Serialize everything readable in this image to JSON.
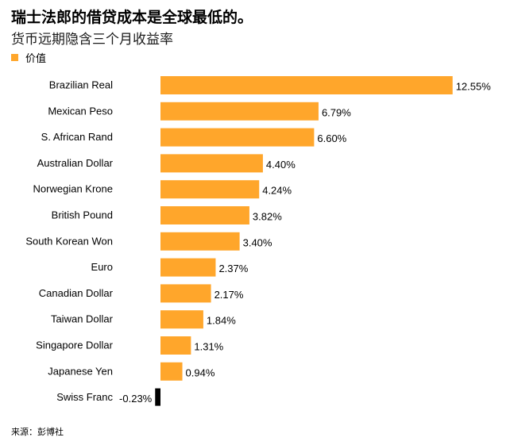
{
  "header": {
    "title": "瑞士法郎的借贷成本是全球最低的。",
    "subtitle": "货币远期隐含三个月收益率"
  },
  "legend": {
    "label": "价值",
    "color": "#FFA62B"
  },
  "colors": {
    "positive": "#FFA62B",
    "negative": "#000000"
  },
  "footer": {
    "source": "来源：彭博社"
  },
  "chart_data": {
    "type": "bar",
    "orientation": "horizontal",
    "title": "瑞士法郎的借贷成本是全球最低的。",
    "subtitle": "货币远期隐含三个月收益率",
    "xlabel": "",
    "ylabel": "",
    "grid": false,
    "legend_position": "top-left",
    "categories": [
      "Brazilian Real",
      "Mexican Peso",
      "S. African Rand",
      "Australian Dollar",
      "Norwegian Krone",
      "British Pound",
      "South Korean Won",
      "Euro",
      "Canadian Dollar",
      "Taiwan Dollar",
      "Singapore Dollar",
      "Japanese Yen",
      "Swiss Franc"
    ],
    "series": [
      {
        "name": "价值",
        "values": [
          12.55,
          6.79,
          6.6,
          4.4,
          4.24,
          3.82,
          3.4,
          2.37,
          2.17,
          1.84,
          1.31,
          0.94,
          -0.23
        ]
      }
    ],
    "data_labels": [
      "12.55%",
      "6.79%",
      "6.60%",
      "4.40%",
      "4.24%",
      "3.82%",
      "3.40%",
      "2.37%",
      "2.17%",
      "1.84%",
      "1.31%",
      "0.94%",
      "-0.23%"
    ]
  }
}
